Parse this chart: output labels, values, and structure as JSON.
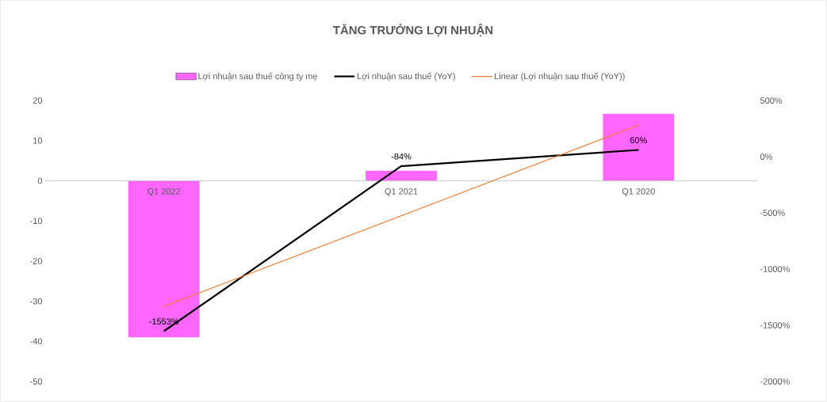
{
  "chart_data": {
    "type": "bar",
    "title": "TĂNG TRƯỞNG LỢI NHUẬN",
    "categories": [
      "Q1 2022",
      "Q1 2021",
      "Q1 2020"
    ],
    "series": [
      {
        "name": "Lợi nhuận sau thuế công ty mẹ",
        "color": "#ff66ff",
        "values": [
          -39,
          2.5,
          16.7
        ]
      },
      {
        "name": "Lợi nhuận sau thuế (YoY)",
        "type": "line",
        "axis": "y2",
        "color": "#000000",
        "line_style": "solid",
        "values": [
          -1553,
          -84,
          60
        ],
        "value_labels": [
          "-1553%",
          "-84%",
          "60%"
        ]
      },
      {
        "name": "Linear (Lợi nhuận sau thuế (YoY))",
        "type": "line",
        "axis": "y2",
        "color": "#ed7d31",
        "line_style": "dotted",
        "values": [
          -1332,
          -526,
          281
        ]
      }
    ],
    "ylim": [
      -50,
      20
    ],
    "yticks": [
      -50,
      -40,
      -30,
      -20,
      -10,
      0,
      10,
      20
    ],
    "y2lim": [
      -2000,
      500
    ],
    "y2ticks": [
      {
        "value": -2000,
        "label": "-2000%"
      },
      {
        "value": -1500,
        "label": "-1500%"
      },
      {
        "value": -1000,
        "label": "-1000%"
      },
      {
        "value": -500,
        "label": "-500%"
      },
      {
        "value": 0,
        "label": "0%"
      },
      {
        "value": 500,
        "label": "500%"
      }
    ],
    "legend": "top"
  }
}
